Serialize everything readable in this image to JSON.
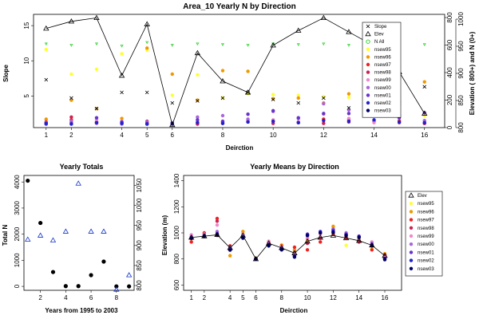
{
  "chart_data": [
    {
      "id": "top",
      "type": "scatter",
      "title": "Area_10 Yearly N by Direction",
      "xlabel": "Deirction",
      "ylabel": "Slope",
      "ylabel_right": "Elevation ( 800+) and N (0+)",
      "x_ticks": [
        1,
        2,
        4,
        5,
        6,
        8,
        10,
        12,
        14,
        16
      ],
      "xlim": [
        0.5,
        16.8
      ],
      "y_ticks": [
        5,
        10,
        15
      ],
      "ylim": [
        0.5,
        16.6
      ],
      "right_ticks_inner": [
        0,
        200,
        400,
        600,
        800
      ],
      "right_ticks_outer": [
        800,
        850,
        900,
        950,
        1000
      ],
      "legend_position": "top-right",
      "legend": [
        {
          "label": "Slope",
          "marker": "x",
          "color": "#000000"
        },
        {
          "label": "Elev",
          "marker": "tri",
          "color": "#000000"
        },
        {
          "label": "N All",
          "marker": "circle-open",
          "color": "#00cc00"
        },
        {
          "label": "nsew95",
          "marker": "dot",
          "color": "#ffff33"
        },
        {
          "label": "nsew96",
          "marker": "dot",
          "color": "#ee9900"
        },
        {
          "label": "nsew97",
          "marker": "dot",
          "color": "#ee2222"
        },
        {
          "label": "nsew98",
          "marker": "dot",
          "color": "#cc2255"
        },
        {
          "label": "nsew99",
          "marker": "dot",
          "color": "#ee88cc"
        },
        {
          "label": "nsew00",
          "marker": "dot",
          "color": "#aa66dd"
        },
        {
          "label": "nsew01",
          "marker": "dot",
          "color": "#6633cc"
        },
        {
          "label": "nsew02",
          "marker": "dot",
          "color": "#2222cc"
        },
        {
          "label": "nsew03",
          "marker": "dot",
          "color": "#000066"
        }
      ],
      "elev_line": {
        "x": [
          1,
          2,
          3,
          4,
          5,
          6,
          7,
          8,
          9,
          10,
          11,
          12,
          13,
          14,
          15,
          16
        ],
        "y": [
          14.6,
          15.6,
          16.1,
          7.9,
          15.2,
          0.9,
          11.1,
          7.1,
          5.5,
          12.2,
          14.3,
          16.1,
          14.1,
          12.1,
          8.4,
          2.5
        ]
      },
      "slope_points": {
        "x": [
          1,
          2,
          3,
          4,
          5,
          6,
          7,
          8,
          9,
          10,
          11,
          12,
          13,
          14,
          15,
          16
        ],
        "y": [
          7.3,
          4.7,
          3.2,
          5.5,
          5.5,
          4.0,
          4.3,
          4.7,
          5.5,
          4.5,
          4.0,
          4.7,
          3.3,
          4.3,
          4.0,
          6.3
        ]
      },
      "nall_points": {
        "x": [
          1,
          2,
          3,
          4,
          5,
          6,
          7,
          8,
          9,
          10,
          11,
          12,
          13,
          14,
          15,
          16
        ],
        "y": [
          12.4,
          12.2,
          12.4,
          12.1,
          12.6,
          12.2,
          12.4,
          12.3,
          12.2,
          12.4,
          12.3,
          12.4,
          12.2,
          12.3,
          12.4,
          12.3
        ]
      },
      "yearly_points": [
        {
          "name": "nsew95",
          "color": "#ffff33",
          "y": [
            11.6,
            8.1,
            8.8,
            11.0,
            11.5,
            5.1,
            8.0,
            4.7,
            5.3,
            5.2,
            5.1,
            4.9,
            4.8,
            3.1,
            4.4,
            2.2
          ]
        },
        {
          "name": "nsew96",
          "color": "#ee9900",
          "y": [
            1.7,
            4.4,
            3.2,
            1.8,
            11.8,
            8.1,
            4.4,
            8.6,
            8.5,
            4.6,
            4.7,
            4.0,
            5.3,
            5.0,
            1.5,
            7.0
          ]
        },
        {
          "name": "nsew97",
          "color": "#ee2222",
          "y": [
            1.3,
            1.6,
            1.2,
            1.1,
            1.0,
            1.0,
            1.2,
            1.3,
            1.5,
            1.4,
            1.3,
            1.7,
            1.6,
            5.0,
            1.4,
            1.1
          ]
        },
        {
          "name": "nsew98",
          "color": "#cc2255",
          "y": [
            1.1,
            2.0,
            1.3,
            1.2,
            1.4,
            1.1,
            1.0,
            1.1,
            1.3,
            1.1,
            1.2,
            1.1,
            1.3,
            1.4,
            1.2,
            1.1
          ]
        },
        {
          "name": "nsew99",
          "color": "#ee88cc",
          "y": [
            1.0,
            1.3,
            1.6,
            1.4,
            1.2,
            1.1,
            1.3,
            1.2,
            1.5,
            1.6,
            1.3,
            2.4,
            1.8,
            1.2,
            1.3,
            1.4
          ]
        },
        {
          "name": "nsew00",
          "color": "#aa66dd",
          "y": [
            1.2,
            1.4,
            1.1,
            1.0,
            1.3,
            1.2,
            2.0,
            2.2,
            1.7,
            2.8,
            1.8,
            3.9,
            3.0,
            2.4,
            2.3,
            1.5
          ]
        },
        {
          "name": "nsew01",
          "color": "#6633cc",
          "y": [
            1.0,
            1.1,
            1.9,
            1.3,
            1.1,
            1.0,
            1.6,
            1.4,
            2.4,
            2.9,
            1.9,
            2.5,
            2.5,
            3.1,
            1.9,
            2.6
          ]
        },
        {
          "name": "nsew02",
          "color": "#2222cc",
          "y": [
            1.1,
            1.0,
            1.2,
            1.1,
            1.0,
            1.1,
            1.2,
            1.1,
            1.3,
            1.4,
            1.2,
            1.5,
            1.4,
            1.6,
            1.3,
            1.2
          ]
        }
      ]
    },
    {
      "id": "bl",
      "type": "scatter",
      "title": "Yearly Totals",
      "xlabel": "Years from 1995 to 2003",
      "ylabel": "Total N",
      "x_ticks": [
        2,
        4,
        6,
        8
      ],
      "xlim": [
        0.7,
        9.4
      ],
      "y_ticks": [
        0,
        1000,
        2000,
        3000,
        4000
      ],
      "ylim": [
        -150,
        4250
      ],
      "right_ticks": [
        800,
        850,
        900,
        950,
        1000,
        1050
      ],
      "right_lim": [
        788,
        1075
      ],
      "totals": {
        "x": [
          1,
          2,
          3,
          4,
          5,
          6,
          7,
          8,
          9
        ],
        "y": [
          4050,
          2430,
          550,
          10,
          10,
          430,
          950,
          0,
          0
        ]
      },
      "elev": {
        "x": [
          1,
          2,
          3,
          4,
          5,
          6,
          7,
          8,
          9
        ],
        "y": [
          915,
          925,
          913,
          935,
          1055,
          935,
          935,
          790,
          826
        ]
      }
    },
    {
      "id": "br",
      "type": "line",
      "title": "Yearly Means by Direction",
      "xlabel": "Deirction",
      "ylabel": "Elevation (m)",
      "x_ticks": [
        1,
        2,
        4,
        5,
        6,
        8,
        10,
        12,
        14,
        16
      ],
      "xlim": [
        0.4,
        17.3
      ],
      "y_ticks": [
        600,
        800,
        1000,
        1200,
        1400
      ],
      "ylim": [
        560,
        1440
      ],
      "legend_position": "right",
      "legend": [
        {
          "label": "Elev",
          "marker": "tri",
          "color": "#000000"
        },
        {
          "label": "nsew95",
          "marker": "dot",
          "color": "#ffff33"
        },
        {
          "label": "nsew96",
          "marker": "dot",
          "color": "#ee9900"
        },
        {
          "label": "nsew97",
          "marker": "dot",
          "color": "#ee2222"
        },
        {
          "label": "nsew98",
          "marker": "dot",
          "color": "#cc2255"
        },
        {
          "label": "nsew99",
          "marker": "dot",
          "color": "#ee88cc"
        },
        {
          "label": "nsew00",
          "marker": "dot",
          "color": "#aa66dd"
        },
        {
          "label": "nsew01",
          "marker": "dot",
          "color": "#6633cc"
        },
        {
          "label": "nsew02",
          "marker": "dot",
          "color": "#2222cc"
        },
        {
          "label": "nsew03",
          "marker": "dot",
          "color": "#000066"
        }
      ],
      "elev_line": {
        "x": [
          1,
          2,
          3,
          4,
          5,
          6,
          7,
          8,
          9,
          10,
          11,
          12,
          13,
          14,
          15,
          16
        ],
        "y": [
          965,
          975,
          985,
          885,
          980,
          800,
          920,
          885,
          845,
          935,
          965,
          980,
          960,
          940,
          905,
          825
        ]
      },
      "yearly_points": [
        {
          "name": "nsew95",
          "color": "#ffff33",
          "y": [
            975,
            985,
            990,
            875,
            1000,
            805,
            930,
            910,
            860,
            960,
            990,
            1040,
            905,
            950,
            880,
            830
          ]
        },
        {
          "name": "nsew96",
          "color": "#ee9900",
          "y": [
            955,
            995,
            980,
            825,
            1010,
            800,
            935,
            905,
            870,
            950,
            1000,
            1050,
            980,
            945,
            900,
            840
          ]
        },
        {
          "name": "nsew97",
          "color": "#ee2222",
          "y": [
            930,
            1000,
            1110,
            900,
            970,
            805,
            925,
            900,
            890,
            870,
            930,
            990,
            960,
            940,
            870,
            830
          ]
        },
        {
          "name": "nsew98",
          "color": "#cc2255",
          "y": [
            960,
            980,
            1090,
            880,
            980,
            800,
            920,
            890,
            850,
            920,
            960,
            1000,
            970,
            930,
            900,
            820
          ]
        },
        {
          "name": "nsew99",
          "color": "#ee88cc",
          "y": [
            985,
            990,
            1060,
            890,
            990,
            800,
            935,
            895,
            840,
            960,
            990,
            1020,
            990,
            960,
            930,
            810
          ]
        },
        {
          "name": "nsew00",
          "color": "#aa66dd",
          "y": [
            970,
            985,
            1010,
            880,
            975,
            800,
            915,
            880,
            830,
            980,
            1000,
            1030,
            1000,
            970,
            920,
            800
          ]
        },
        {
          "name": "nsew01",
          "color": "#6633cc",
          "y": [
            965,
            980,
            995,
            875,
            970,
            800,
            910,
            880,
            825,
            990,
            1010,
            1020,
            990,
            975,
            910,
            805
          ]
        },
        {
          "name": "nsew02",
          "color": "#2222cc",
          "y": [
            960,
            975,
            990,
            870,
            965,
            800,
            905,
            875,
            820,
            985,
            1005,
            1010,
            985,
            970,
            905,
            800
          ]
        },
        {
          "name": "nsew03",
          "color": "#000066",
          "y": [
            958,
            972,
            985,
            868,
            960,
            800,
            900,
            870,
            815,
            980,
            1000,
            1005,
            980,
            965,
            900,
            795
          ]
        }
      ]
    }
  ]
}
